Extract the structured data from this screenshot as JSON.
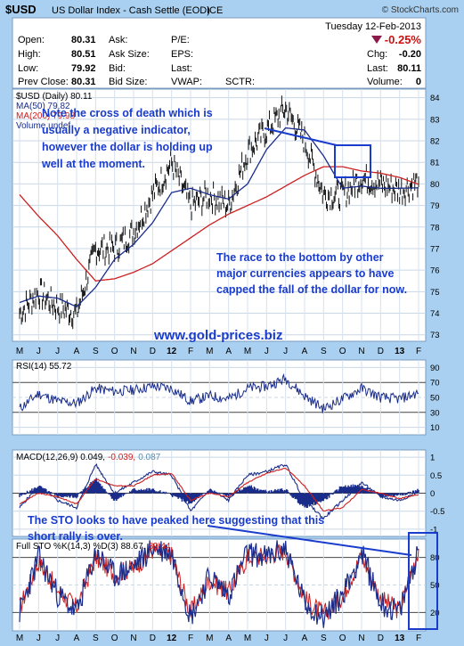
{
  "header": {
    "symbol": "$USD",
    "name": "US Dollar Index - Cash Settle (EOD)",
    "exchange": "ICE",
    "brand": "© StockCharts.com",
    "date": "Tuesday  12-Feb-2013",
    "change_pct": "-0.25%",
    "fields": [
      {
        "label": "Open:",
        "value": "80.31"
      },
      {
        "label": "High:",
        "value": "80.51"
      },
      {
        "label": "Low:",
        "value": "79.92"
      },
      {
        "label": "Prev Close:",
        "value": "80.31"
      }
    ],
    "mid_labels": [
      "Ask:",
      "Ask Size:",
      "Bid:",
      "Bid Size:"
    ],
    "right_labels": [
      "P/E:",
      "EPS:",
      "Last:",
      "VWAP:"
    ],
    "sctr_label": "SCTR:",
    "quote": [
      {
        "label": "Chg:",
        "value": "-0.20"
      },
      {
        "label": "Last:",
        "value": "80.11"
      },
      {
        "label": "Volume:",
        "value": "0"
      }
    ]
  },
  "legend": {
    "price": "$USD (Daily) 80.11",
    "ma50": "MA(50) 79.82",
    "ma200": "MA(200) 79.98",
    "volume": "Volume undef"
  },
  "panels": {
    "rsi_label": "RSI(14) 55.72",
    "macd_label_a": "MACD(12,26,9) 0.049,",
    "macd_label_b": "-0.039,",
    "macd_label_c": "0.087",
    "sto_label_a": "Full STO %K(14,3) %D(3) 88.67,",
    "sto_label_b": "89.44"
  },
  "annotations": {
    "death_cross": [
      "Note the cross of death which is",
      "usually a negative indicator,",
      "however the dollar is holding up",
      "well at the moment."
    ],
    "race": [
      "The race to the bottom by other",
      "major currencies appears to have",
      "capped the fall of the dollar for now."
    ],
    "website": "www.gold-prices.biz",
    "sto": [
      "The STO looks to have peaked here suggesting that this",
      "short rally is over."
    ]
  },
  "x_axis": {
    "labels": [
      "M",
      "J",
      "J",
      "A",
      "S",
      "O",
      "N",
      "D",
      "12",
      "F",
      "M",
      "A",
      "M",
      "J",
      "J",
      "A",
      "S",
      "O",
      "N",
      "D",
      "13",
      "F"
    ]
  },
  "colors": {
    "background": "#a9d0f0",
    "panel": "#ffffff",
    "price": "#111111",
    "ma50": "#1a2d8a",
    "ma200": "#cc2020",
    "rsi": "#1a2d8a",
    "macd": "#1a2d8a",
    "signal": "#cc2020",
    "histogram": "#1a2d8a",
    "annotation": "#1a3ccc",
    "down": "#8b1a4a"
  },
  "chart_data": [
    {
      "type": "line",
      "title": "$USD (Daily) 80.11",
      "y_ticks": [
        73,
        74,
        75,
        76,
        77,
        78,
        79,
        80,
        81,
        82,
        83,
        84
      ],
      "ylim": [
        72.7,
        84.4
      ],
      "x_ticks": [
        "M",
        "J",
        "J",
        "A",
        "S",
        "O",
        "N",
        "D",
        "12",
        "F",
        "M",
        "A",
        "M",
        "J",
        "J",
        "A",
        "S",
        "O",
        "N",
        "D",
        "13",
        "F"
      ],
      "series": [
        {
          "name": "$USD",
          "x": [
            "May-11",
            "Jun-11",
            "Jul-11",
            "Aug-11",
            "Sep-11",
            "Oct-11",
            "Nov-11",
            "Dec-11",
            "Jan-12",
            "Feb-12",
            "Mar-12",
            "Apr-12",
            "May-12",
            "Jun-12",
            "Jul-12",
            "Aug-12",
            "Sep-12",
            "Oct-12",
            "Nov-12",
            "Dec-12",
            "Jan-13",
            "Feb-13"
          ],
          "values": [
            74.0,
            75.0,
            74.3,
            74.0,
            77.0,
            77.0,
            77.8,
            79.5,
            81.0,
            79.0,
            79.5,
            79.0,
            81.5,
            82.5,
            83.5,
            82.0,
            79.5,
            79.5,
            80.3,
            80.0,
            79.7,
            80.1
          ]
        },
        {
          "name": "MA(50)",
          "values": [
            74.5,
            74.8,
            74.7,
            74.3,
            75.2,
            76.5,
            77.2,
            78.2,
            79.6,
            79.8,
            79.5,
            79.3,
            80.0,
            81.6,
            82.6,
            82.5,
            81.3,
            79.8,
            79.9,
            79.8,
            79.8,
            79.82
          ]
        },
        {
          "name": "MA(200)",
          "values": [
            79.5,
            78.5,
            77.6,
            76.5,
            75.5,
            75.6,
            75.9,
            76.3,
            76.9,
            77.5,
            78.1,
            78.6,
            79.0,
            79.4,
            79.9,
            80.4,
            80.8,
            80.8,
            80.6,
            80.5,
            80.3,
            79.98
          ]
        }
      ]
    },
    {
      "type": "line",
      "title": "RSI(14) 55.72",
      "y_ticks": [
        10,
        30,
        50,
        70,
        90
      ],
      "ylim": [
        0,
        100
      ],
      "series": [
        {
          "name": "RSI(14)",
          "values": [
            35,
            55,
            45,
            42,
            62,
            58,
            60,
            65,
            62,
            45,
            52,
            48,
            62,
            65,
            75,
            52,
            35,
            48,
            62,
            50,
            48,
            56
          ]
        }
      ]
    },
    {
      "type": "line",
      "title": "MACD(12,26,9)",
      "y_ticks": [
        -1.0,
        -0.5,
        0.0,
        0.5,
        1.0
      ],
      "ylim": [
        -1.2,
        1.2
      ],
      "series": [
        {
          "name": "MACD",
          "values": [
            -0.4,
            0.2,
            -0.2,
            -0.4,
            0.8,
            0.0,
            0.3,
            0.6,
            0.5,
            -0.5,
            0.1,
            -0.2,
            0.5,
            0.6,
            0.8,
            -0.2,
            -0.7,
            -0.2,
            0.3,
            -0.1,
            -0.2,
            0.049
          ]
        },
        {
          "name": "Signal",
          "values": [
            -0.3,
            0.0,
            -0.1,
            -0.3,
            0.4,
            0.2,
            0.2,
            0.5,
            0.55,
            -0.2,
            0.0,
            -0.1,
            0.3,
            0.55,
            0.7,
            0.2,
            -0.5,
            -0.4,
            0.1,
            0.0,
            -0.15,
            -0.039
          ]
        }
      ]
    },
    {
      "type": "line",
      "title": "Full STO %K(14,3) %D(3)",
      "y_ticks": [
        20,
        50,
        80
      ],
      "ylim": [
        0,
        100
      ],
      "series": [
        {
          "name": "%K",
          "values": [
            20,
            80,
            40,
            20,
            85,
            60,
            70,
            90,
            85,
            15,
            60,
            40,
            85,
            80,
            90,
            30,
            15,
            40,
            85,
            30,
            20,
            88.67
          ]
        },
        {
          "name": "%D",
          "values": [
            25,
            75,
            45,
            25,
            80,
            62,
            68,
            88,
            82,
            20,
            55,
            42,
            80,
            82,
            88,
            35,
            18,
            38,
            82,
            35,
            22,
            89.44
          ]
        }
      ]
    }
  ]
}
